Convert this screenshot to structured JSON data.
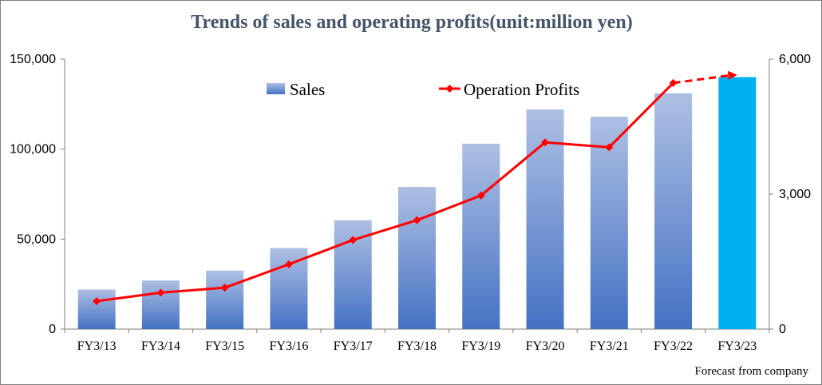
{
  "title": "Trends of sales and operating profits(unit:million yen)",
  "footnote": "Forecast from company",
  "chart_data": {
    "type": "bar",
    "categories": [
      "FY3/13",
      "FY3/14",
      "FY3/15",
      "FY3/16",
      "FY3/17",
      "FY3/18",
      "FY3/19",
      "FY3/20",
      "FY3/21",
      "FY3/22",
      "FY3/23"
    ],
    "series": [
      {
        "name": "Sales",
        "type": "bar",
        "axis": "left",
        "values": [
          22000,
          27000,
          32500,
          45000,
          60500,
          79000,
          103000,
          122000,
          118000,
          131000,
          140000
        ],
        "forecast_index": 10
      },
      {
        "name": "Operation Profits",
        "type": "line",
        "axis": "right",
        "values": [
          620,
          810,
          920,
          1440,
          1980,
          2420,
          2970,
          4150,
          4040,
          5470,
          5650
        ],
        "forecast_from_index": 9
      }
    ],
    "y_left": {
      "min": 0,
      "max": 150000,
      "ticks": [
        0,
        50000,
        100000,
        150000
      ],
      "tick_labels": [
        "0",
        "50,000",
        "100,000",
        "150,000"
      ]
    },
    "y_right": {
      "min": 0,
      "max": 6000,
      "ticks": [
        0,
        3000,
        6000
      ],
      "tick_labels": [
        "0",
        "3,000",
        "6,000"
      ]
    },
    "grid": false,
    "legend_position": "top-center",
    "colors": {
      "bar_top": "#aebfe3",
      "bar_bottom": "#4472c4",
      "bar_forecast": "#00b0f0",
      "line": "#ff0000",
      "title": "#44546a"
    }
  }
}
